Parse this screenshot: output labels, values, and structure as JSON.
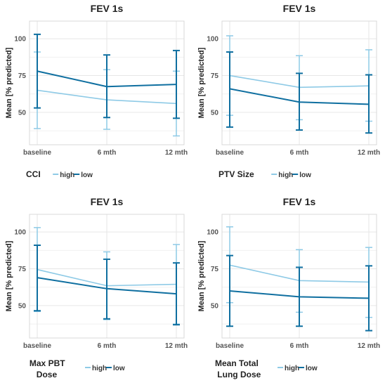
{
  "chart_data": [
    {
      "type": "line",
      "title": "FEV 1s",
      "ylabel": "Mean [% predicted]",
      "categories": [
        "baseline",
        "6 mth",
        "12 mth"
      ],
      "yticks": [
        50,
        75,
        100
      ],
      "ylim": [
        28,
        112
      ],
      "legend_title": "CCI",
      "legend_position": "bottom",
      "series": [
        {
          "name": "high",
          "color": "#8ecae6",
          "values": [
            65,
            58.5,
            56
          ],
          "err_low": [
            39,
            38.5,
            34
          ],
          "err_high": [
            91,
            79,
            78
          ]
        },
        {
          "name": "low",
          "color": "#0f6fa0",
          "values": [
            78,
            67.5,
            69
          ],
          "err_low": [
            53,
            46.5,
            46
          ],
          "err_high": [
            103,
            89,
            92
          ]
        }
      ]
    },
    {
      "type": "line",
      "title": "FEV 1s",
      "ylabel": "Mean [% predicted]",
      "categories": [
        "baseline",
        "6 mth",
        "12 mth"
      ],
      "yticks": [
        50,
        75,
        100
      ],
      "ylim": [
        28,
        112
      ],
      "legend_title": "PTV Size",
      "legend_position": "bottom",
      "series": [
        {
          "name": "high",
          "color": "#8ecae6",
          "values": [
            75,
            67,
            68
          ],
          "err_low": [
            48,
            45,
            44
          ],
          "err_high": [
            102,
            88.5,
            92.5
          ]
        },
        {
          "name": "low",
          "color": "#0f6fa0",
          "values": [
            66,
            57,
            55.5
          ],
          "err_low": [
            40,
            38,
            36
          ],
          "err_high": [
            91,
            76.5,
            75.5
          ]
        }
      ]
    },
    {
      "type": "line",
      "title": "FEV 1s",
      "ylabel": "Mean [% predicted]",
      "categories": [
        "baseline",
        "6 mth",
        "12 mth"
      ],
      "yticks": [
        50,
        75,
        100
      ],
      "ylim": [
        28,
        112
      ],
      "legend_title": "Max PBT Dose",
      "legend_position": "bottom",
      "series": [
        {
          "name": "high",
          "color": "#8ecae6",
          "values": [
            74.5,
            63.5,
            64.5
          ],
          "err_low": [
            46,
            40.5,
            37.5
          ],
          "err_high": [
            103,
            86.5,
            91.5
          ]
        },
        {
          "name": "low",
          "color": "#0f6fa0",
          "values": [
            69,
            61.5,
            58
          ],
          "err_low": [
            46.5,
            41,
            37
          ],
          "err_high": [
            91,
            81.5,
            79
          ]
        }
      ]
    },
    {
      "type": "line",
      "title": "FEV 1s",
      "ylabel": "Mean [% predicted]",
      "categories": [
        "baseline",
        "6 mth",
        "12 mth"
      ],
      "yticks": [
        50,
        75,
        100
      ],
      "ylim": [
        28,
        112
      ],
      "legend_title": "Mean Total Lung Dose",
      "legend_position": "bottom",
      "series": [
        {
          "name": "high",
          "color": "#8ecae6",
          "values": [
            77.5,
            67,
            66
          ],
          "err_low": [
            52,
            45.5,
            42
          ],
          "err_high": [
            103.5,
            88,
            89.5
          ]
        },
        {
          "name": "low",
          "color": "#0f6fa0",
          "values": [
            60,
            56,
            55
          ],
          "err_low": [
            36,
            36,
            33
          ],
          "err_high": [
            84,
            76,
            77
          ]
        }
      ]
    }
  ]
}
